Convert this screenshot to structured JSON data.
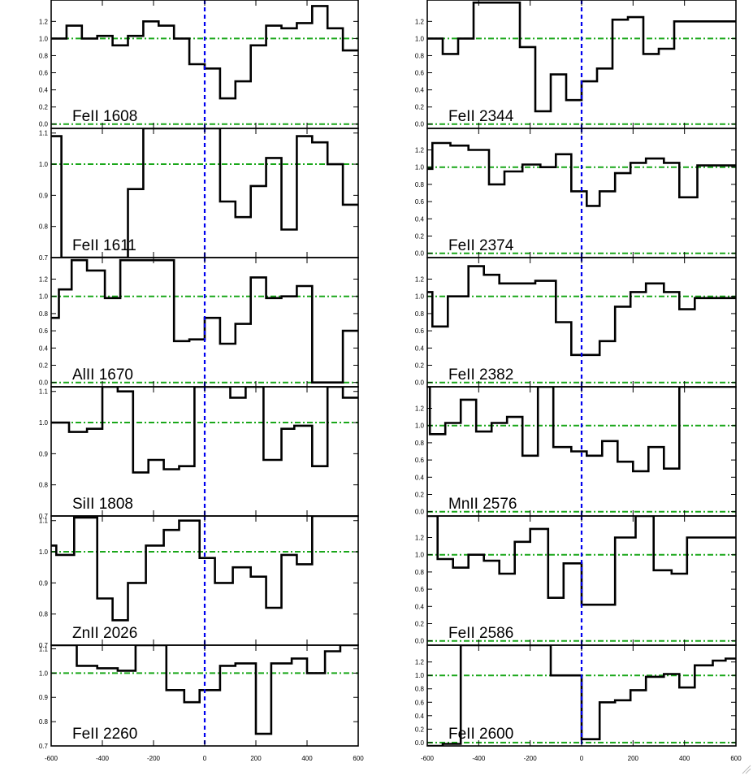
{
  "chart_data": {
    "type": "line",
    "layout": "grid of 6 rows x 2 columns of stacked velocity panels",
    "x_axis": {
      "range": [
        -600,
        600
      ],
      "ticks": [
        -600,
        -400,
        -200,
        0,
        200,
        400,
        600
      ],
      "tick_labels": [
        "-600",
        "-400",
        "-200",
        "0",
        "200",
        "400",
        "600"
      ]
    },
    "reference_lines": {
      "continuum": 1.0,
      "zero": 0.0,
      "velocity_zero": 0
    },
    "colors": {
      "spectrum": "#000000",
      "continuum_line": "#1aa71a",
      "velocity_zero_line": "#0000ee"
    },
    "grid": false,
    "panels": [
      {
        "label": "FeII 1608",
        "column": 0,
        "row": 0,
        "ylim": [
          -0.05,
          1.45
        ],
        "yticks": [
          0.0,
          0.2,
          0.4,
          0.6,
          0.8,
          1.0,
          1.2
        ],
        "ytick_labels": [
          "0.0",
          "0.2",
          "0.4",
          "0.6",
          "0.8",
          "1.0",
          "1.2"
        ],
        "x": [
          -600,
          -540,
          -480,
          -420,
          -360,
          -300,
          -240,
          -180,
          -120,
          -60,
          0,
          60,
          120,
          180,
          240,
          300,
          360,
          420,
          480,
          540,
          600
        ],
        "y": [
          1.0,
          1.15,
          1.0,
          1.03,
          0.92,
          1.03,
          1.2,
          1.15,
          1.0,
          0.7,
          0.65,
          0.3,
          0.5,
          0.92,
          1.15,
          1.12,
          1.18,
          1.38,
          1.12,
          0.86,
          0.86
        ]
      },
      {
        "label": "FeII 1611",
        "column": 0,
        "row": 1,
        "ylim": [
          0.7,
          1.115
        ],
        "yticks": [
          0.7,
          0.8,
          0.9,
          1.0,
          1.1
        ],
        "ytick_labels": [
          "0.7",
          "0.8",
          "0.9",
          "1.0",
          "1.1"
        ],
        "x": [
          -600,
          -560,
          -500,
          -440,
          -360,
          -300,
          -240,
          -180,
          -120,
          -60,
          0,
          60,
          120,
          180,
          240,
          300,
          360,
          420,
          480,
          540,
          600
        ],
        "y": [
          1.09,
          0.7,
          0.7,
          0.7,
          0.7,
          0.92,
          1.12,
          1.12,
          1.12,
          1.12,
          1.12,
          0.88,
          0.83,
          0.93,
          1.02,
          0.79,
          1.09,
          1.07,
          1.0,
          0.87,
          0.87
        ]
      },
      {
        "label": "AlII 1670",
        "column": 0,
        "row": 2,
        "ylim": [
          -0.05,
          1.45
        ],
        "yticks": [
          0.0,
          0.2,
          0.4,
          0.6,
          0.8,
          1.0,
          1.2
        ],
        "ytick_labels": [
          "0.0",
          "0.2",
          "0.4",
          "0.6",
          "0.8",
          "1.0",
          "1.2"
        ],
        "x": [
          -600,
          -570,
          -520,
          -460,
          -390,
          -330,
          -260,
          -190,
          -120,
          -60,
          0,
          60,
          120,
          180,
          240,
          300,
          360,
          420,
          480,
          540,
          580,
          600
        ],
        "y": [
          0.75,
          1.08,
          1.42,
          1.3,
          0.98,
          1.42,
          1.42,
          1.42,
          0.48,
          0.5,
          0.75,
          0.45,
          0.68,
          1.22,
          0.98,
          1.0,
          1.12,
          0.0,
          0.0,
          0.6,
          0.6,
          0.6
        ]
      },
      {
        "label": "SiII 1808",
        "column": 0,
        "row": 3,
        "ylim": [
          0.7,
          1.115
        ],
        "yticks": [
          0.7,
          0.8,
          0.9,
          1.0,
          1.1
        ],
        "ytick_labels": [
          "0.7",
          "0.8",
          "0.9",
          "1.0",
          "1.1"
        ],
        "x": [
          -600,
          -530,
          -460,
          -400,
          -340,
          -280,
          -220,
          -160,
          -100,
          -40,
          20,
          100,
          160,
          230,
          300,
          350,
          420,
          480,
          540,
          600
        ],
        "y": [
          1.0,
          0.97,
          0.98,
          1.12,
          1.1,
          0.84,
          0.88,
          0.85,
          0.86,
          1.12,
          1.12,
          1.08,
          1.12,
          0.88,
          0.98,
          0.99,
          0.86,
          1.12,
          1.08,
          1.08
        ]
      },
      {
        "label": "ZnII 2026",
        "column": 0,
        "row": 4,
        "ylim": [
          0.7,
          1.115
        ],
        "yticks": [
          0.7,
          0.8,
          0.9,
          1.0,
          1.1
        ],
        "ytick_labels": [
          "0.7",
          "0.8",
          "0.9",
          "1.0",
          "1.1"
        ],
        "x": [
          -600,
          -580,
          -510,
          -420,
          -360,
          -300,
          -230,
          -160,
          -100,
          -20,
          40,
          110,
          180,
          240,
          300,
          360,
          420,
          480,
          540,
          600
        ],
        "y": [
          1.02,
          0.99,
          1.11,
          0.85,
          0.78,
          0.9,
          1.02,
          1.07,
          1.1,
          0.98,
          0.9,
          0.95,
          0.92,
          0.82,
          0.99,
          0.96,
          1.12,
          1.12,
          1.12,
          1.12
        ]
      },
      {
        "label": "FeII 2260",
        "column": 0,
        "row": 5,
        "ylim": [
          0.7,
          1.115
        ],
        "yticks": [
          0.7,
          0.8,
          0.9,
          1.0,
          1.1
        ],
        "ytick_labels": [
          "0.7",
          "0.8",
          "0.9",
          "1.0",
          "1.1"
        ],
        "x": [
          -600,
          -500,
          -420,
          -340,
          -270,
          -150,
          -80,
          -20,
          60,
          120,
          200,
          260,
          340,
          400,
          470,
          530,
          600
        ],
        "y": [
          1.12,
          1.03,
          1.02,
          1.01,
          1.12,
          0.93,
          0.88,
          0.93,
          1.03,
          1.04,
          0.75,
          1.04,
          1.06,
          1.0,
          1.09,
          1.12,
          1.12
        ]
      },
      {
        "label": "FeII 2344",
        "column": 1,
        "row": 0,
        "ylim": [
          -0.05,
          1.45
        ],
        "yticks": [
          0.0,
          0.2,
          0.4,
          0.6,
          0.8,
          1.0,
          1.2
        ],
        "ytick_labels": [
          "0.0",
          "0.2",
          "0.4",
          "0.6",
          "0.8",
          "1.0",
          "1.2"
        ],
        "x": [
          -600,
          -540,
          -480,
          -420,
          -360,
          -300,
          -240,
          -180,
          -120,
          -60,
          0,
          60,
          120,
          180,
          240,
          300,
          360,
          420,
          480,
          540,
          600
        ],
        "y": [
          1.0,
          0.82,
          1.0,
          1.42,
          1.42,
          1.42,
          0.9,
          0.15,
          0.58,
          0.28,
          0.5,
          0.65,
          1.22,
          1.25,
          0.82,
          0.88,
          1.2,
          1.2,
          1.2,
          1.2,
          1.2
        ]
      },
      {
        "label": "FeII 2374",
        "column": 1,
        "row": 1,
        "ylim": [
          -0.05,
          1.45
        ],
        "yticks": [
          0.0,
          0.2,
          0.4,
          0.6,
          0.8,
          1.0,
          1.2
        ],
        "ytick_labels": [
          "0.0",
          "0.2",
          "0.4",
          "0.6",
          "0.8",
          "1.0",
          "1.2"
        ],
        "x": [
          -600,
          -580,
          -510,
          -440,
          -360,
          -300,
          -230,
          -160,
          -100,
          -40,
          20,
          70,
          130,
          190,
          250,
          320,
          380,
          450,
          510,
          560,
          600
        ],
        "y": [
          0.98,
          1.28,
          1.25,
          1.2,
          0.8,
          0.95,
          1.03,
          1.0,
          1.15,
          0.72,
          0.55,
          0.72,
          0.93,
          1.05,
          1.1,
          1.05,
          0.65,
          1.02,
          1.02,
          1.02,
          1.02
        ]
      },
      {
        "label": "FeII 2382",
        "column": 1,
        "row": 2,
        "ylim": [
          -0.05,
          1.45
        ],
        "yticks": [
          0.0,
          0.2,
          0.4,
          0.6,
          0.8,
          1.0,
          1.2
        ],
        "ytick_labels": [
          "0.0",
          "0.2",
          "0.4",
          "0.6",
          "0.8",
          "1.0",
          "1.2"
        ],
        "x": [
          -600,
          -580,
          -520,
          -440,
          -380,
          -320,
          -260,
          -180,
          -100,
          -40,
          20,
          70,
          130,
          190,
          250,
          320,
          380,
          440,
          510,
          560,
          600
        ],
        "y": [
          1.05,
          0.65,
          1.0,
          1.35,
          1.25,
          1.15,
          1.15,
          1.18,
          0.7,
          0.32,
          0.32,
          0.48,
          0.88,
          1.05,
          1.15,
          1.05,
          0.85,
          0.98,
          0.98,
          0.98,
          0.98
        ]
      },
      {
        "label": "MnII 2576",
        "column": 1,
        "row": 3,
        "ylim": [
          -0.05,
          1.45
        ],
        "yticks": [
          0.0,
          0.2,
          0.4,
          0.6,
          0.8,
          1.0,
          1.2
        ],
        "ytick_labels": [
          "0.0",
          "0.2",
          "0.4",
          "0.6",
          "0.8",
          "1.0",
          "1.2"
        ],
        "x": [
          -600,
          -590,
          -530,
          -470,
          -410,
          -350,
          -290,
          -230,
          -170,
          -110,
          -40,
          20,
          80,
          140,
          200,
          260,
          320,
          380,
          440,
          510,
          560,
          600
        ],
        "y": [
          1.45,
          0.9,
          1.03,
          1.3,
          0.93,
          1.03,
          1.1,
          0.65,
          1.45,
          0.75,
          0.7,
          0.65,
          0.82,
          0.58,
          0.47,
          0.75,
          0.5,
          1.45,
          1.45,
          1.45,
          1.45,
          1.0
        ]
      },
      {
        "label": "FeII 2586",
        "column": 1,
        "row": 4,
        "ylim": [
          -0.05,
          1.45
        ],
        "yticks": [
          0.0,
          0.2,
          0.4,
          0.6,
          0.8,
          1.0,
          1.2
        ],
        "ytick_labels": [
          "0.0",
          "0.2",
          "0.4",
          "0.6",
          "0.8",
          "1.0",
          "1.2"
        ],
        "x": [
          -600,
          -560,
          -500,
          -440,
          -380,
          -320,
          -260,
          -200,
          -130,
          -70,
          0,
          70,
          130,
          210,
          280,
          350,
          410,
          480,
          540,
          600
        ],
        "y": [
          1.45,
          0.95,
          0.85,
          1.0,
          0.93,
          0.78,
          1.15,
          1.3,
          0.5,
          0.9,
          0.42,
          0.42,
          1.2,
          1.45,
          0.82,
          0.78,
          1.2,
          1.2,
          1.2,
          1.2
        ]
      },
      {
        "label": "FeII 2600",
        "column": 1,
        "row": 5,
        "ylim": [
          -0.05,
          1.45
        ],
        "yticks": [
          0.0,
          0.2,
          0.4,
          0.6,
          0.8,
          1.0,
          1.2
        ],
        "ytick_labels": [
          "0.0",
          "0.2",
          "0.4",
          "0.6",
          "0.8",
          "1.0",
          "1.2"
        ],
        "x": [
          -600,
          -540,
          -470,
          -400,
          -320,
          -260,
          -200,
          -120,
          -60,
          0,
          70,
          130,
          190,
          250,
          320,
          380,
          440,
          510,
          560,
          600
        ],
        "y": [
          -0.05,
          -0.02,
          1.45,
          1.45,
          1.45,
          1.45,
          1.45,
          1.0,
          1.0,
          0.05,
          0.6,
          0.63,
          0.78,
          0.98,
          1.02,
          0.82,
          1.15,
          1.22,
          1.25,
          1.25
        ]
      }
    ]
  }
}
